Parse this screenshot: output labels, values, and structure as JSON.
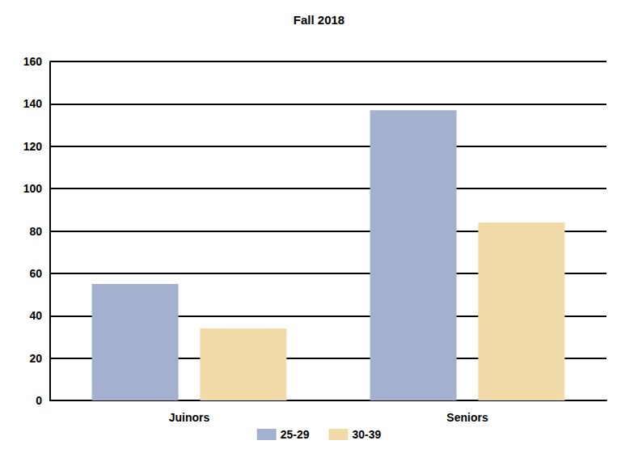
{
  "chart_data": {
    "type": "bar",
    "title": "Fall 2018",
    "categories": [
      "Juinors",
      "Seniors"
    ],
    "series": [
      {
        "name": "25-29",
        "color": "#a3b1cf",
        "values": [
          55,
          137
        ]
      },
      {
        "name": "30-39",
        "color": "#f1dba8",
        "values": [
          34,
          84
        ]
      }
    ],
    "ylim": [
      0,
      160
    ],
    "yticks": [
      0,
      20,
      40,
      60,
      80,
      100,
      120,
      140,
      160
    ],
    "grid": true,
    "legend": "bottom"
  }
}
